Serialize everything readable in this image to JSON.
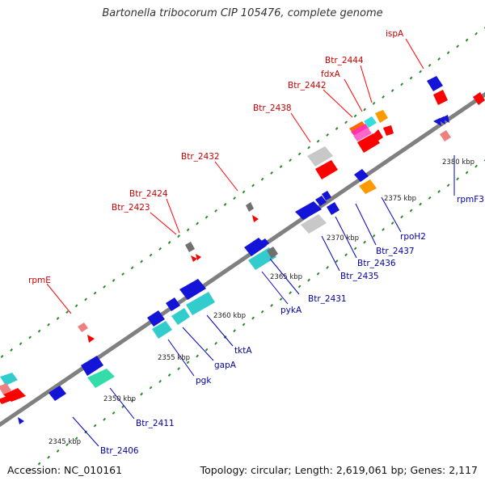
{
  "title": "Bartonella tribocorum CIP 105476, complete genome",
  "footer": {
    "accession": "Accession: NC_010161",
    "summary": "Topology: circular; Length: 2,619,061 bp; Genes: 2,117"
  },
  "colors": {
    "backbone": "#808080",
    "cds": "#1414d8",
    "rna": "#ff0000",
    "pseudo": "#c8c8c8",
    "label_cds": "#0000aa",
    "label_other": "#cc0000"
  },
  "ticks": [
    "2345 kbp",
    "2350 kbp",
    "2355 kbp",
    "2360 kbp",
    "2365 kbp",
    "2370 kbp",
    "2375 kbp",
    "2380 kbp"
  ],
  "gene_labels": [
    "ispA",
    "Btr_2444",
    "fdxA",
    "Btr_2442",
    "Btr_2438",
    "Btr_2432",
    "Btr_2424",
    "Btr_2423",
    "rpmE",
    "rpmF3",
    "rpoH2",
    "Btr_2437",
    "Btr_2436",
    "Btr_2435",
    "Btr_2431",
    "pykA",
    "tktA",
    "gapA",
    "pgk",
    "Btr_2411",
    "Btr_2406"
  ]
}
